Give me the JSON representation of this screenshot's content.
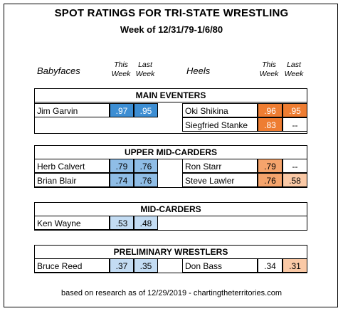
{
  "title": "SPOT RATINGS FOR TRI-STATE WRESTLING",
  "subtitle": "Week of 12/31/79-1/6/80",
  "headers": {
    "babyfaces": "Babyfaces",
    "heels": "Heels",
    "this_week": "This Week",
    "last_week": "Last Week",
    "this_top": "This",
    "week": "Week",
    "last_top": "Last"
  },
  "sections": {
    "main": {
      "title": "MAIN EVENTERS",
      "faces": [
        {
          "name": "Jim Garvin",
          "this": ".97",
          "last": ".95"
        }
      ],
      "heels": [
        {
          "name": "Oki Shikina",
          "this": ".96",
          "last": ".95"
        },
        {
          "name": "Siegfried Stanke",
          "this": ".83",
          "last": "--"
        }
      ]
    },
    "upper": {
      "title": "UPPER MID-CARDERS",
      "faces": [
        {
          "name": "Herb Calvert",
          "this": ".79",
          "last": ".76"
        },
        {
          "name": "Brian Blair",
          "this": ".74",
          "last": ".76"
        }
      ],
      "heels": [
        {
          "name": "Ron Starr",
          "this": ".79",
          "last": "--"
        },
        {
          "name": "Steve Lawler",
          "this": ".76",
          "last": ".58"
        }
      ]
    },
    "mid": {
      "title": "MID-CARDERS",
      "faces": [
        {
          "name": "Ken Wayne",
          "this": ".53",
          "last": ".48"
        }
      ]
    },
    "prelim": {
      "title": "PRELIMINARY WRESTLERS",
      "faces": [
        {
          "name": "Bruce Reed",
          "this": ".37",
          "last": ".35"
        }
      ],
      "heels": [
        {
          "name": "Don Bass",
          "this": ".34",
          "last": ".31"
        }
      ]
    }
  },
  "footer": "based on research as of 12/29/2019   -   chartingtheterritories.com",
  "colors": {
    "blue_dark": "#3d8ed3",
    "blue_mid": "#8fbde6",
    "blue_light": "#c3dcf3",
    "orange_dark": "#ee7d32",
    "orange_mid": "#f5a46c",
    "orange_light": "#fac9a6"
  }
}
